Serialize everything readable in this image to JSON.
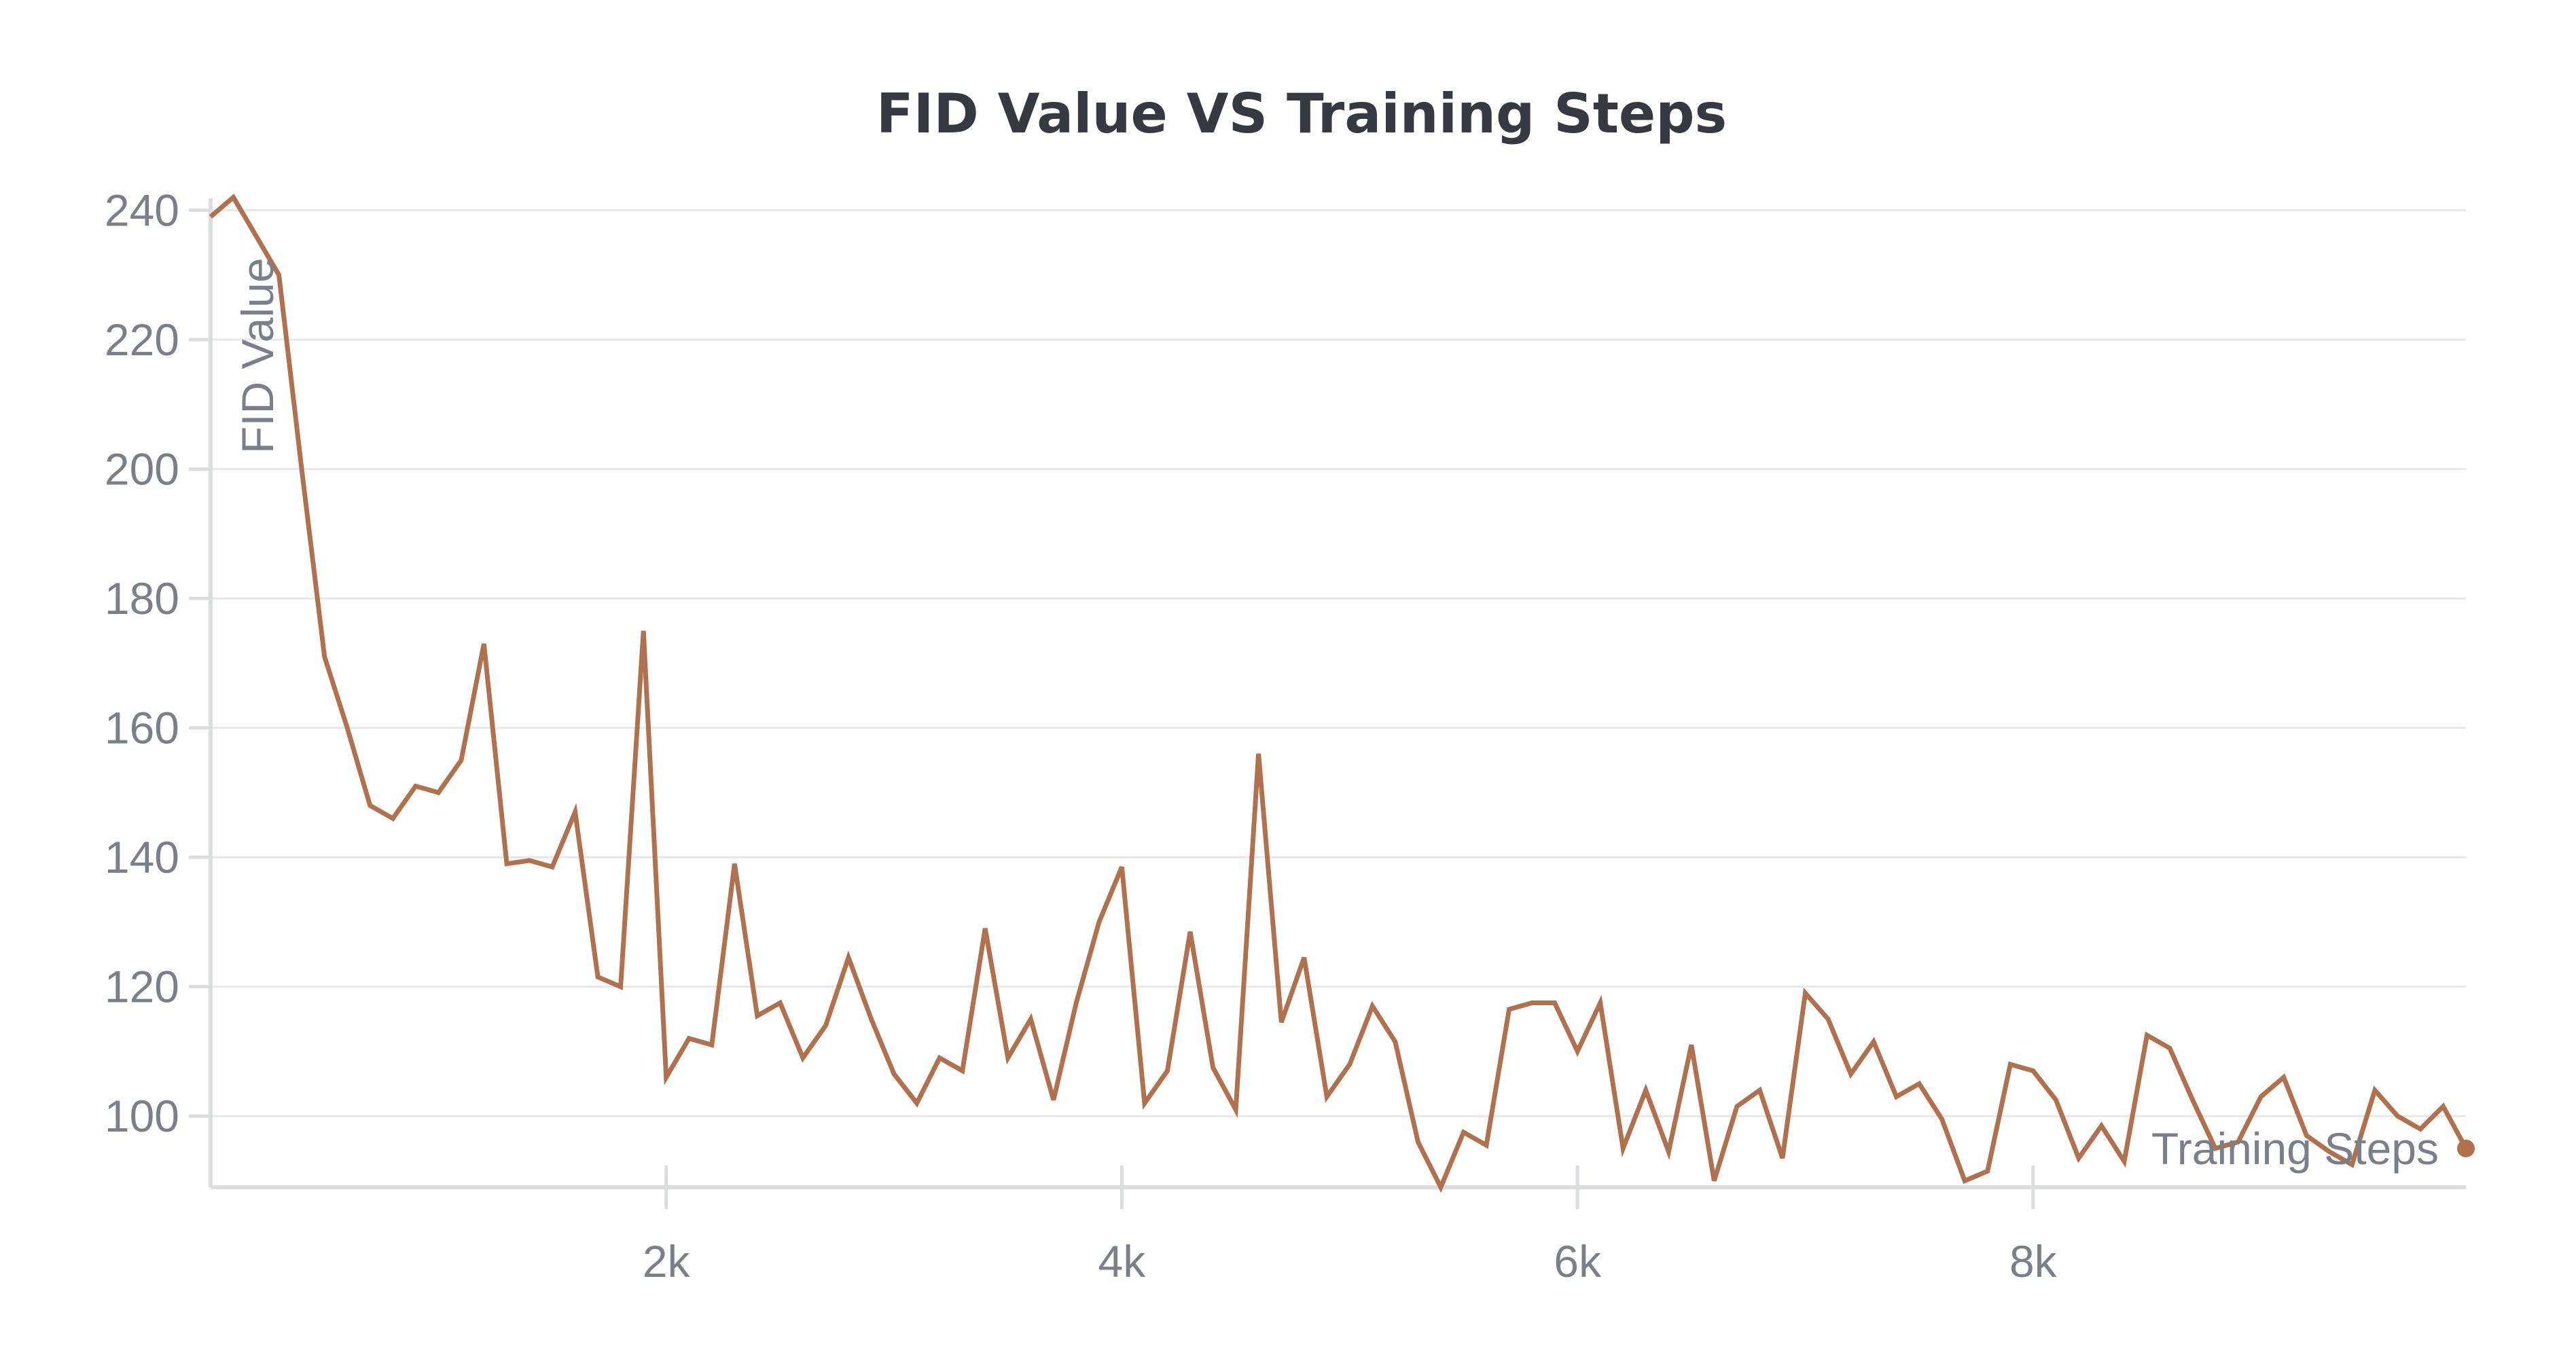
{
  "chart_data": {
    "type": "line",
    "title": "FID Value VS Training Steps",
    "xlabel": "Training Steps",
    "ylabel": "FID Value",
    "xlim": [
      0,
      9900
    ],
    "ylim": [
      89,
      241
    ],
    "x_ticks": [
      2000,
      4000,
      6000,
      8000
    ],
    "x_tick_labels": [
      "2k",
      "4k",
      "6k",
      "8k"
    ],
    "y_ticks": [
      100,
      120,
      140,
      160,
      180,
      200,
      220,
      240
    ],
    "y_tick_labels": [
      "100",
      "120",
      "140",
      "160",
      "180",
      "200",
      "220",
      "240"
    ],
    "grid": true,
    "legend": "none",
    "colors": {
      "series": "#b0714f",
      "grid": "#e8e8ea",
      "axis": "#dcdde0",
      "text": "#7a7f88",
      "title": "#36393f"
    },
    "series": [
      {
        "x": [
          0,
          100,
          200,
          300,
          400,
          500,
          600,
          700,
          800,
          900,
          1000,
          1100,
          1200,
          1300,
          1400,
          1500,
          1600,
          1700,
          1800,
          1900,
          2000,
          2100,
          2200,
          2300,
          2400,
          2500,
          2600,
          2700,
          2800,
          2900,
          3000,
          3100,
          3200,
          3300,
          3400,
          3500,
          3600,
          3700,
          3800,
          3900,
          4000,
          4100,
          4200,
          4300,
          4400,
          4500,
          4600,
          4700,
          4800,
          4900,
          5000,
          5100,
          5200,
          5300,
          5400,
          5500,
          5600,
          5700,
          5800,
          5900,
          6000,
          6100,
          6200,
          6300,
          6400,
          6500,
          6600,
          6700,
          6800,
          6900,
          7000,
          7100,
          7200,
          7300,
          7400,
          7500,
          7600,
          7700,
          7800,
          7900,
          8000,
          8100,
          8200,
          8300,
          8400,
          8500,
          8600,
          8700,
          8800,
          8900,
          9000,
          9100,
          9200,
          9300,
          9400,
          9500,
          9600,
          9700,
          9800,
          9900
        ],
        "values": [
          239,
          242,
          236,
          230,
          200,
          171,
          160,
          148,
          146,
          151,
          150,
          155,
          173,
          139,
          139.5,
          138.5,
          147,
          121.5,
          120,
          175,
          106,
          112,
          111,
          139,
          115.5,
          117.5,
          109,
          114,
          124.5,
          115,
          106.5,
          102,
          109,
          107,
          129,
          109,
          115,
          102.5,
          117.5,
          130,
          138.5,
          102,
          107,
          128.5,
          107.5,
          101,
          156,
          114.5,
          124.5,
          103,
          108,
          117,
          111.5,
          96,
          89,
          97.5,
          95.5,
          116.5,
          117.5,
          117.5,
          110,
          117.5,
          95,
          104,
          94.5,
          111,
          90,
          101.5,
          104,
          93.5,
          119,
          115,
          106.5,
          111.5,
          103,
          105,
          99.5,
          90,
          91.5,
          108,
          107,
          102.5,
          93.5,
          98.5,
          93,
          112.5,
          110.5,
          102.5,
          95,
          96,
          103,
          106,
          97,
          94.5,
          92.5,
          104,
          100,
          98,
          101.5,
          95
        ]
      }
    ]
  }
}
